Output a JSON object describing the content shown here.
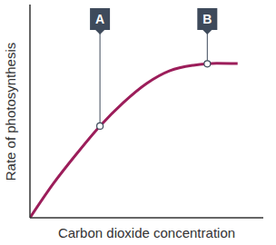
{
  "chart_data": {
    "type": "line",
    "x_label": "Carbon dioxide concentration",
    "y_label": "Rate of photosynthesis",
    "x": [
      0,
      1,
      2,
      3,
      4,
      5,
      6,
      7,
      7.6,
      8,
      8.9
    ],
    "values": [
      0,
      1.6,
      3.0,
      4.3,
      5.4,
      6.3,
      6.9,
      7.15,
      7.22,
      7.24,
      7.23
    ],
    "color": "#9c1d5a",
    "xlim": [
      0,
      10
    ],
    "ylim": [
      0,
      10
    ],
    "yticks": [
      0,
      1,
      2,
      3,
      4,
      5,
      6,
      7,
      8,
      9,
      10
    ],
    "grid": false,
    "tick_labels": false,
    "annotations": [
      {
        "text": "A",
        "x": 3,
        "y": 4.3
      },
      {
        "text": "B",
        "x": 7.6,
        "y": 7.22
      }
    ]
  }
}
